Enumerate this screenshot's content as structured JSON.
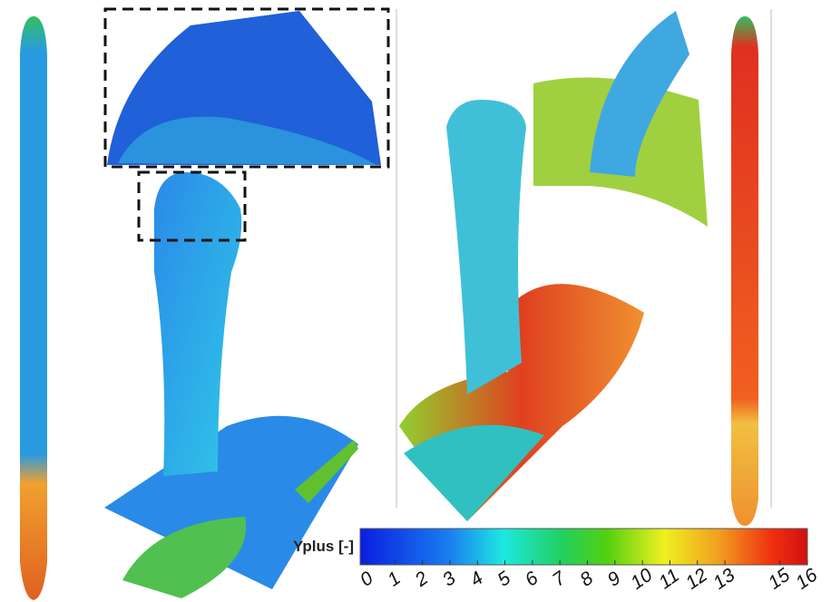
{
  "colorbar": {
    "label": "Yplus [-]",
    "ticks": [
      0,
      1,
      2,
      3,
      4,
      5,
      6,
      7,
      8,
      9,
      10,
      11,
      12,
      13,
      15,
      16
    ],
    "range": [
      0,
      16
    ]
  }
}
